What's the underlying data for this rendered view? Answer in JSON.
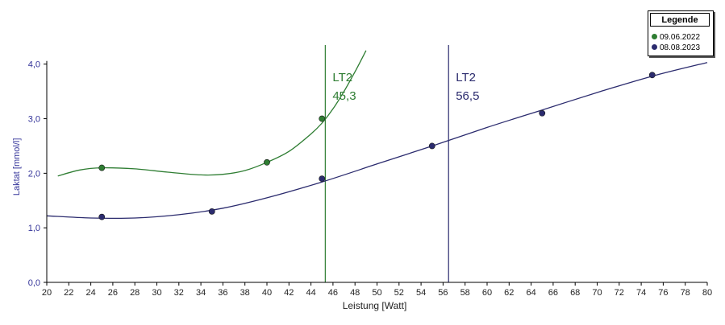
{
  "chart_data": {
    "type": "line",
    "xlabel": "Leistung [Watt]",
    "ylabel": "Laktat [mmol/l]",
    "xlim": [
      20,
      80
    ],
    "ylim": [
      0,
      4.35
    ],
    "xticks": [
      20,
      22,
      24,
      26,
      28,
      30,
      32,
      34,
      36,
      38,
      40,
      42,
      44,
      46,
      48,
      50,
      52,
      54,
      56,
      58,
      60,
      62,
      64,
      66,
      68,
      70,
      72,
      74,
      76,
      78,
      80
    ],
    "xtick_labels": [
      "20",
      "22",
      "24",
      "26",
      "28",
      "30",
      "32",
      "34",
      "36",
      "38",
      "40",
      "42",
      "44",
      "46",
      "48",
      "50",
      "52",
      "54",
      "56",
      "58",
      "60",
      "62",
      "64",
      "66",
      "68",
      "70",
      "72",
      "74",
      "76",
      "78",
      "80"
    ],
    "yticks": [
      0,
      1,
      2,
      3,
      4
    ],
    "ytick_labels": [
      "0,0",
      "1,0",
      "2,0",
      "3,0",
      "4,0"
    ],
    "grid": false,
    "legend_placement": "top-right",
    "legend_title": "Legende",
    "series": [
      {
        "name": "09.06.2022",
        "color": "#2e7d32",
        "points": [
          {
            "x": 25,
            "y": 2.1
          },
          {
            "x": 40,
            "y": 2.2
          },
          {
            "x": 45,
            "y": 3.0
          }
        ],
        "fit_curve": [
          {
            "x": 21,
            "y": 1.95
          },
          {
            "x": 23,
            "y": 2.06
          },
          {
            "x": 25,
            "y": 2.1
          },
          {
            "x": 28,
            "y": 2.08
          },
          {
            "x": 31,
            "y": 2.02
          },
          {
            "x": 34,
            "y": 1.97
          },
          {
            "x": 36,
            "y": 1.98
          },
          {
            "x": 38,
            "y": 2.05
          },
          {
            "x": 40,
            "y": 2.2
          },
          {
            "x": 42,
            "y": 2.4
          },
          {
            "x": 44,
            "y": 2.72
          },
          {
            "x": 45,
            "y": 2.92
          },
          {
            "x": 46,
            "y": 3.18
          },
          {
            "x": 47,
            "y": 3.5
          },
          {
            "x": 48,
            "y": 3.86
          },
          {
            "x": 49,
            "y": 4.25
          }
        ],
        "threshold": {
          "label": "LT2",
          "value_text": "45,3",
          "x": 45.3
        }
      },
      {
        "name": "08.08.2023",
        "color": "#2b2b6e",
        "points": [
          {
            "x": 25,
            "y": 1.2
          },
          {
            "x": 35,
            "y": 1.3
          },
          {
            "x": 45,
            "y": 1.9
          },
          {
            "x": 55,
            "y": 2.5
          },
          {
            "x": 65,
            "y": 3.1
          },
          {
            "x": 75,
            "y": 3.8
          }
        ],
        "fit_curve": [
          {
            "x": 20,
            "y": 1.22
          },
          {
            "x": 24,
            "y": 1.18
          },
          {
            "x": 28,
            "y": 1.18
          },
          {
            "x": 32,
            "y": 1.24
          },
          {
            "x": 36,
            "y": 1.36
          },
          {
            "x": 40,
            "y": 1.55
          },
          {
            "x": 45,
            "y": 1.84
          },
          {
            "x": 50,
            "y": 2.17
          },
          {
            "x": 55,
            "y": 2.5
          },
          {
            "x": 60,
            "y": 2.84
          },
          {
            "x": 65,
            "y": 3.16
          },
          {
            "x": 70,
            "y": 3.48
          },
          {
            "x": 75,
            "y": 3.78
          },
          {
            "x": 80,
            "y": 4.03
          }
        ],
        "threshold": {
          "label": "LT2",
          "value_text": "56,5",
          "x": 56.5
        }
      }
    ]
  },
  "colors": {
    "axis": "#000000",
    "y_axis_text": "#333399"
  }
}
